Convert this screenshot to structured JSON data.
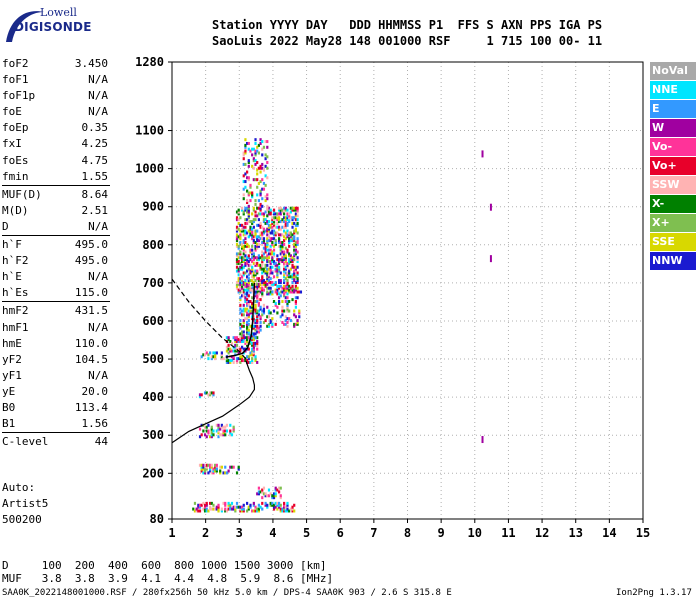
{
  "header": {
    "line1": "Station YYYY DAY   DDD HHMMSS P1  FFS S AXN PPS IGA PS",
    "line2": "SaoLuis 2022 May28 148 001000 RSF     1 715 100 00- 11"
  },
  "logo": {
    "top": "Lowell",
    "bottom": "DIGISONDE"
  },
  "params": [
    {
      "k": "foF2",
      "v": "3.450"
    },
    {
      "k": "foF1",
      "v": "N/A"
    },
    {
      "k": "foF1p",
      "v": "N/A"
    },
    {
      "k": "foE",
      "v": "N/A"
    },
    {
      "k": "foEp",
      "v": "0.35"
    },
    {
      "k": "fxI",
      "v": "4.25"
    },
    {
      "k": "foEs",
      "v": "4.75"
    },
    {
      "k": "fmin",
      "v": "1.55"
    },
    {
      "k": "MUF(D)",
      "v": "8.64",
      "sep": true
    },
    {
      "k": "M(D)",
      "v": "2.51"
    },
    {
      "k": "D",
      "v": "N/A"
    },
    {
      "k": "h`F",
      "v": "495.0",
      "sep": true
    },
    {
      "k": "h`F2",
      "v": "495.0"
    },
    {
      "k": "h`E",
      "v": "N/A"
    },
    {
      "k": "h`Es",
      "v": "115.0"
    },
    {
      "k": "hmF2",
      "v": "431.5",
      "sep": true
    },
    {
      "k": "hmF1",
      "v": "N/A"
    },
    {
      "k": "hmE",
      "v": "110.0"
    },
    {
      "k": "yF2",
      "v": "104.5"
    },
    {
      "k": "yF1",
      "v": "N/A"
    },
    {
      "k": "yE",
      "v": "20.0"
    },
    {
      "k": "B0",
      "v": "113.4"
    },
    {
      "k": "B1",
      "v": "1.56"
    },
    {
      "k": "C-level",
      "v": "44",
      "sep": true
    }
  ],
  "auto": {
    "line1": "Auto:",
    "line2": "Artist5",
    "line3": "500200"
  },
  "footer": {
    "d_line": "D     100  200  400  600  800 1000 1500 3000 [km]",
    "muf_line": "MUF   3.8  3.8  3.9  4.1  4.4  4.8  5.9  8.6 [MHz]",
    "file_line": "SAA0K_2022148001000.RSF / 280fx256h 50 kHz 5.0 km / DPS-4 SAA0K 903 / 2.6 S 315.8 E",
    "version": "Ion2Png 1.3.17"
  },
  "legend": [
    {
      "label": "NoVal",
      "color": "#a9a9a9"
    },
    {
      "label": "NNE",
      "color": "#00e5ff"
    },
    {
      "label": "E",
      "color": "#3399ff"
    },
    {
      "label": "W",
      "color": "#a000a0"
    },
    {
      "label": "Vo-",
      "color": "#ff3399"
    },
    {
      "label": "Vo+",
      "color": "#e8002a"
    },
    {
      "label": "SSW",
      "color": "#ffb3b3"
    },
    {
      "label": "X-",
      "color": "#008000"
    },
    {
      "label": "X+",
      "color": "#7fbf50"
    },
    {
      "label": "SSE",
      "color": "#d8d800"
    },
    {
      "label": "NNW",
      "color": "#1a1ad0"
    }
  ],
  "chart_data": {
    "type": "scatter",
    "title": "",
    "xlabel": "",
    "ylabel": "",
    "xlim": [
      1,
      15
    ],
    "ylim": [
      80,
      1280
    ],
    "x_ticks": [
      1,
      2,
      3,
      4,
      5,
      6,
      7,
      8,
      9,
      10,
      11,
      12,
      13,
      14,
      15
    ],
    "y_ticks": [
      80,
      200,
      300,
      400,
      500,
      600,
      700,
      800,
      900,
      1000,
      1100,
      1280
    ],
    "grid": true,
    "series": [
      {
        "kind": "echo_clusters",
        "clusters": [
          {
            "f": [
              1.6,
              4.6
            ],
            "h": [
              105,
              125
            ],
            "density": 0.45
          },
          {
            "f": [
              1.8,
              2.3
            ],
            "h": [
              205,
              225
            ],
            "density": 0.5
          },
          {
            "f": [
              2.3,
              3.0
            ],
            "h": [
              205,
              222
            ],
            "density": 0.3
          },
          {
            "f": [
              1.8,
              2.4
            ],
            "h": [
              300,
              330
            ],
            "density": 0.4
          },
          {
            "f": [
              2.4,
              2.8
            ],
            "h": [
              305,
              330
            ],
            "density": 0.2
          },
          {
            "f": [
              1.8,
              2.2
            ],
            "h": [
              405,
              418
            ],
            "density": 0.3
          },
          {
            "f": [
              1.8,
              2.6
            ],
            "h": [
              505,
              520
            ],
            "density": 0.3
          },
          {
            "f": [
              2.6,
              3.5
            ],
            "h": [
              495,
              560
            ],
            "density": 0.5
          },
          {
            "f": [
              3.0,
              3.6
            ],
            "h": [
              560,
              700
            ],
            "density": 0.4
          },
          {
            "f": [
              2.9,
              4.7
            ],
            "h": [
              680,
              900
            ],
            "density": 0.45
          },
          {
            "f": [
              3.1,
              3.8
            ],
            "h": [
              900,
              1080
            ],
            "density": 0.2
          },
          {
            "f": [
              3.5,
              4.2
            ],
            "h": [
              140,
              165
            ],
            "density": 0.3
          },
          {
            "f": [
              3.4,
              4.8
            ],
            "h": [
              590,
              680
            ],
            "density": 0.2
          }
        ],
        "isolated": [
          {
            "f": 10.2,
            "h": 1040
          },
          {
            "f": 10.2,
            "h": 290
          },
          {
            "f": 10.45,
            "h": 900
          },
          {
            "f": 10.45,
            "h": 765
          }
        ]
      },
      {
        "kind": "profile_solid",
        "points": [
          [
            1.0,
            280
          ],
          [
            1.5,
            310
          ],
          [
            2.0,
            330
          ],
          [
            2.5,
            350
          ],
          [
            3.0,
            380
          ],
          [
            3.3,
            400
          ],
          [
            3.45,
            420
          ],
          [
            3.45,
            431.5
          ],
          [
            3.4,
            450
          ],
          [
            3.3,
            470
          ],
          [
            3.2,
            495
          ]
        ]
      },
      {
        "kind": "profile_dashed",
        "points": [
          [
            1.0,
            710
          ],
          [
            1.5,
            650
          ],
          [
            2.0,
            600
          ],
          [
            2.5,
            555
          ],
          [
            3.0,
            520
          ],
          [
            3.25,
            495
          ]
        ]
      },
      {
        "kind": "trace_F2",
        "points": [
          [
            2.6,
            505
          ],
          [
            2.9,
            510
          ],
          [
            3.1,
            515
          ],
          [
            3.25,
            530
          ],
          [
            3.35,
            560
          ],
          [
            3.4,
            600
          ],
          [
            3.42,
            640
          ],
          [
            3.45,
            700
          ]
        ]
      }
    ]
  }
}
